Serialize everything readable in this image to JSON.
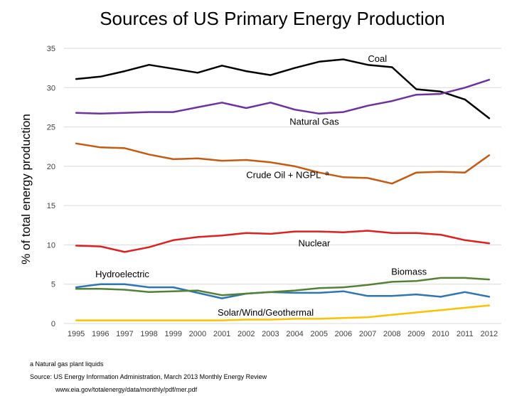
{
  "chart_data": {
    "type": "line",
    "title": "Sources of US Primary Energy Production",
    "ylabel": "% of total energy production",
    "xlabel": "",
    "ylim": [
      0,
      35
    ],
    "yticks": [
      0,
      5,
      10,
      15,
      20,
      25,
      30,
      35
    ],
    "grid": "horizontal",
    "legend": "inline labels",
    "x": [
      "1995",
      "1996",
      "1997",
      "1998",
      "1999",
      "2000",
      "2001",
      "2002",
      "2003",
      "2004",
      "2005",
      "2006",
      "2007",
      "2008",
      "2009",
      "2010",
      "2011",
      "2012"
    ],
    "series": [
      {
        "name": "Coal",
        "color": "#000000",
        "values": [
          31.1,
          31.4,
          32.1,
          32.9,
          32.4,
          31.9,
          32.8,
          32.1,
          31.6,
          32.5,
          33.3,
          33.6,
          32.9,
          32.6,
          29.8,
          29.5,
          28.5,
          26.1
        ]
      },
      {
        "name": "Natural Gas",
        "color": "#7030a0",
        "values": [
          26.8,
          26.7,
          26.8,
          26.9,
          26.9,
          27.5,
          28.1,
          27.4,
          28.1,
          27.2,
          26.7,
          26.9,
          27.7,
          28.3,
          29.1,
          29.2,
          30.0,
          31.0
        ]
      },
      {
        "name": "Crude Oil + NGPL",
        "superscript": "a",
        "color": "#c55a11",
        "values": [
          22.9,
          22.4,
          22.3,
          21.5,
          20.9,
          21.0,
          20.7,
          20.8,
          20.5,
          20.0,
          19.2,
          18.6,
          18.5,
          17.8,
          19.2,
          19.3,
          19.2,
          21.4
        ]
      },
      {
        "name": "Nuclear",
        "color": "#e02020",
        "values": [
          9.9,
          9.8,
          9.1,
          9.7,
          10.6,
          11.0,
          11.2,
          11.5,
          11.4,
          11.7,
          11.7,
          11.6,
          11.8,
          11.5,
          11.5,
          11.3,
          10.6,
          10.2
        ]
      },
      {
        "name": "Hydroelectric",
        "color": "#2e75b6",
        "values": [
          4.6,
          5.0,
          5.0,
          4.6,
          4.6,
          3.9,
          3.2,
          3.8,
          4.0,
          3.9,
          3.9,
          4.1,
          3.5,
          3.5,
          3.7,
          3.4,
          4.0,
          3.4
        ]
      },
      {
        "name": "Biomass",
        "color": "#548235",
        "values": [
          4.4,
          4.4,
          4.3,
          4.0,
          4.1,
          4.2,
          3.6,
          3.8,
          4.0,
          4.2,
          4.5,
          4.6,
          4.9,
          5.3,
          5.4,
          5.8,
          5.8,
          5.6
        ]
      },
      {
        "name": "Solar/Wind/Geothermal",
        "color": "#ffc000",
        "values": [
          0.4,
          0.4,
          0.4,
          0.4,
          0.4,
          0.4,
          0.4,
          0.5,
          0.5,
          0.6,
          0.6,
          0.7,
          0.8,
          1.1,
          1.4,
          1.7,
          2.0,
          2.3
        ]
      }
    ]
  },
  "footnotes": {
    "note_a": "a    Natural gas plant liquids",
    "source": "Source: US Energy Information Administration, March 2013 Monthly Energy Review",
    "url": "www.eia.gov/totalenergy/data/monthly/pdf/mer.pdf"
  }
}
